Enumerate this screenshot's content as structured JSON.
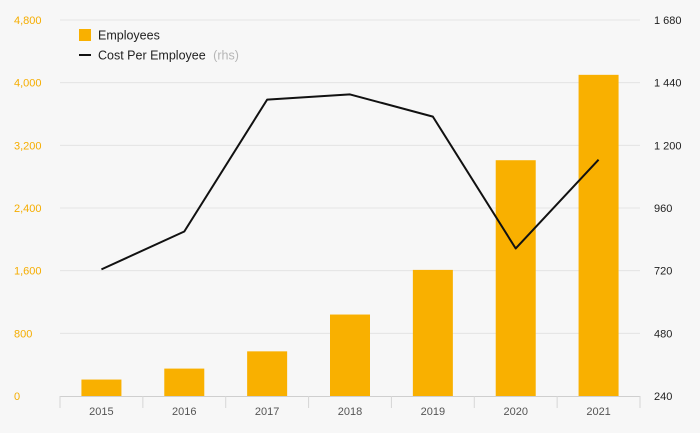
{
  "chart_data": {
    "type": "bar+line",
    "categories": [
      "2015",
      "2016",
      "2017",
      "2018",
      "2019",
      "2020",
      "2021"
    ],
    "series": [
      {
        "name": "Employees",
        "type": "bar",
        "axis": "left",
        "values": [
          210,
          350,
          570,
          1040,
          1610,
          3010,
          4100
        ]
      },
      {
        "name": "Cost Per Employee",
        "type": "line",
        "axis": "right",
        "values": [
          725,
          870,
          1375,
          1395,
          1310,
          805,
          1145
        ]
      }
    ],
    "y_left": {
      "ticks": [
        "0",
        "800",
        "1,600",
        "2,400",
        "3,200",
        "4,000",
        "4,800"
      ],
      "ylim": [
        0,
        4800
      ]
    },
    "y_right": {
      "ticks": [
        "240",
        "480",
        "720",
        "960",
        "1 200",
        "1 440",
        "1 680"
      ],
      "ylim": [
        240,
        1680
      ]
    },
    "legend": {
      "position": "top-left",
      "items": [
        {
          "label": "Employees",
          "note": ""
        },
        {
          "label": "Cost Per Employee",
          "note": "(rhs)"
        }
      ]
    },
    "colors": {
      "bar": "#f9b000",
      "line": "#111111",
      "left_ticks": "#f5ad00",
      "grid": "#e4e4e4"
    },
    "grid": true
  }
}
